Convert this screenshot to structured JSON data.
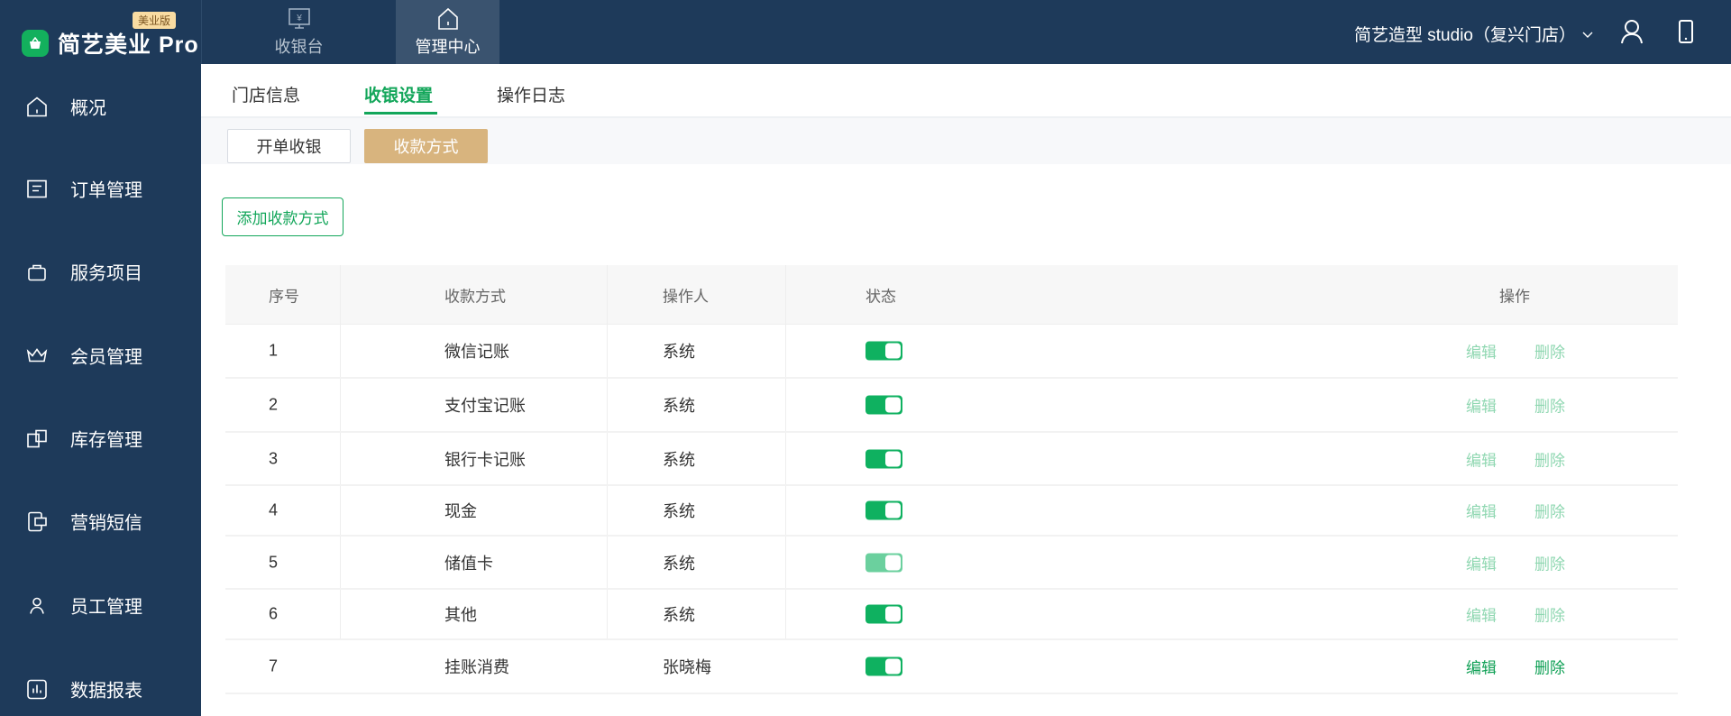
{
  "brand": {
    "name": "简艺美业 Pro",
    "edition": "美业版"
  },
  "sidebar": {
    "items": [
      {
        "label": "概况",
        "icon": "home-icon"
      },
      {
        "label": "订单管理",
        "icon": "receipt-icon"
      },
      {
        "label": "服务项目",
        "icon": "briefcase-icon"
      },
      {
        "label": "会员管理",
        "icon": "crown-icon"
      },
      {
        "label": "库存管理",
        "icon": "inventory-icon"
      },
      {
        "label": "营销短信",
        "icon": "sms-icon"
      },
      {
        "label": "员工管理",
        "icon": "user-icon"
      },
      {
        "label": "数据报表",
        "icon": "chart-icon"
      }
    ]
  },
  "topnav": {
    "items": [
      {
        "label": "收银台",
        "icon": "cashier-monitor-icon"
      },
      {
        "label": "管理中心",
        "icon": "home-icon",
        "active": true
      }
    ],
    "store": "简艺造型 studio（复兴门店）"
  },
  "tabs": [
    {
      "label": "门店信息"
    },
    {
      "label": "收银设置",
      "active": true
    },
    {
      "label": "操作日志"
    }
  ],
  "subtabs": [
    {
      "label": "开单收银"
    },
    {
      "label": "收款方式",
      "active": true
    }
  ],
  "add_button": "添加收款方式",
  "table": {
    "headers": [
      "序号",
      "收款方式",
      "操作人",
      "状态",
      "操作"
    ],
    "rows": [
      {
        "no": "1",
        "method": "微信记账",
        "operator": "系统",
        "enabled": true,
        "edit": "编辑",
        "delete": "删除"
      },
      {
        "no": "2",
        "method": "支付宝记账",
        "operator": "系统",
        "enabled": true,
        "edit": "编辑",
        "delete": "删除"
      },
      {
        "no": "3",
        "method": "银行卡记账",
        "operator": "系统",
        "enabled": true,
        "edit": "编辑",
        "delete": "删除"
      },
      {
        "no": "4",
        "method": "现金",
        "operator": "系统",
        "enabled": true,
        "edit": "编辑",
        "delete": "删除"
      },
      {
        "no": "5",
        "method": "储值卡",
        "operator": "系统",
        "enabled": true,
        "disabled_toggle": true,
        "edit": "编辑",
        "delete": "删除"
      },
      {
        "no": "6",
        "method": "其他",
        "operator": "系统",
        "enabled": true,
        "edit": "编辑",
        "delete": "删除"
      },
      {
        "no": "7",
        "method": "挂账消费",
        "operator": "张晓梅",
        "enabled": true,
        "edit": "编辑",
        "delete": "删除"
      }
    ]
  },
  "colors": {
    "accent": "#13a65a",
    "sidebar": "#1e3a5a",
    "subtab_active": "#d8b47e"
  }
}
